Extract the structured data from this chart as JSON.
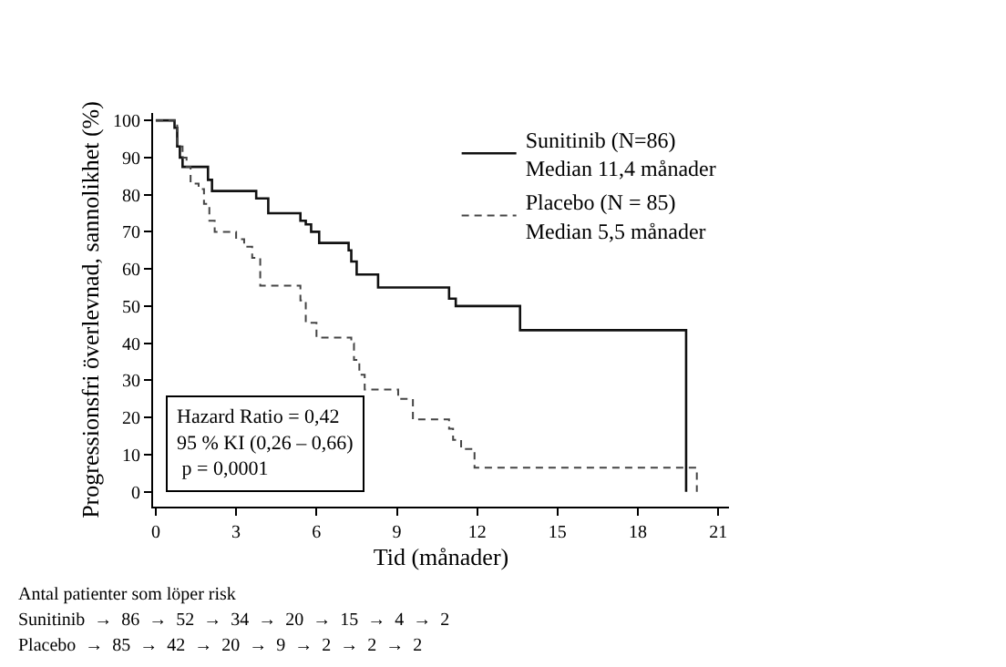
{
  "chart_data": {
    "type": "step",
    "xlabel": "Tid (månader)",
    "ylabel": "Progressionsfri överlevnad, sannolikhet (%)",
    "xlim": [
      -0.1,
      21.4
    ],
    "xticks": [
      0,
      3,
      6,
      9,
      12,
      15,
      18,
      21
    ],
    "ylim": [
      -4,
      102
    ],
    "yticks": [
      0,
      10,
      20,
      30,
      40,
      50,
      60,
      70,
      80,
      90,
      100
    ],
    "legend": "top right",
    "marker": "none",
    "series": [
      {
        "name": "Sunitinib (N=86)\nMedian 11,4 månader",
        "color": "#111111",
        "line_style": "solid",
        "x": [
          0,
          0.7,
          0.8,
          0.9,
          1.0,
          1.1,
          1.95,
          2.1,
          3.75,
          4.2,
          5.4,
          5.6,
          5.8,
          6.1,
          7.2,
          7.3,
          7.5,
          8.3,
          10.95,
          11.2,
          11.3,
          13.6,
          19.8
        ],
        "values": [
          100,
          98,
          93,
          90,
          87.5,
          87.5,
          84,
          81,
          79,
          75,
          73,
          72,
          70,
          67,
          65,
          62,
          58.5,
          55,
          52,
          50,
          50,
          43.5,
          0
        ]
      },
      {
        "name": "Placebo (N = 85)\nMedian 5,5 månader",
        "color": "#444444",
        "line_style": "dashed",
        "x": [
          0,
          0.8,
          1.0,
          1.15,
          1.3,
          1.6,
          1.8,
          2.0,
          2.2,
          3.0,
          3.3,
          3.6,
          3.9,
          5.4,
          5.6,
          6.0,
          7.3,
          7.4,
          7.6,
          7.8,
          9.05,
          9.6,
          10.95,
          11.1,
          11.4,
          11.9,
          20.2
        ],
        "values": [
          100,
          93,
          90,
          87.5,
          83,
          81.5,
          77.5,
          73,
          70,
          68,
          66,
          63,
          55.5,
          51.5,
          45.5,
          41.5,
          40,
          35.5,
          31.5,
          27.5,
          25,
          19.5,
          17,
          14,
          11.5,
          6.5,
          0
        ]
      }
    ],
    "annotations": [
      "Hazard Ratio = 0,42\n95 % KI (0,26 – 0,66)\n p = 0,0001",
      "Antal patienter som löper risk",
      "Sunitinib  →  86  →  52  →  34  →  20  →  15  →  4  →  2",
      "Placebo  →  85  →  42  →  20  →  9  →  2  →  2  →  2"
    ]
  }
}
